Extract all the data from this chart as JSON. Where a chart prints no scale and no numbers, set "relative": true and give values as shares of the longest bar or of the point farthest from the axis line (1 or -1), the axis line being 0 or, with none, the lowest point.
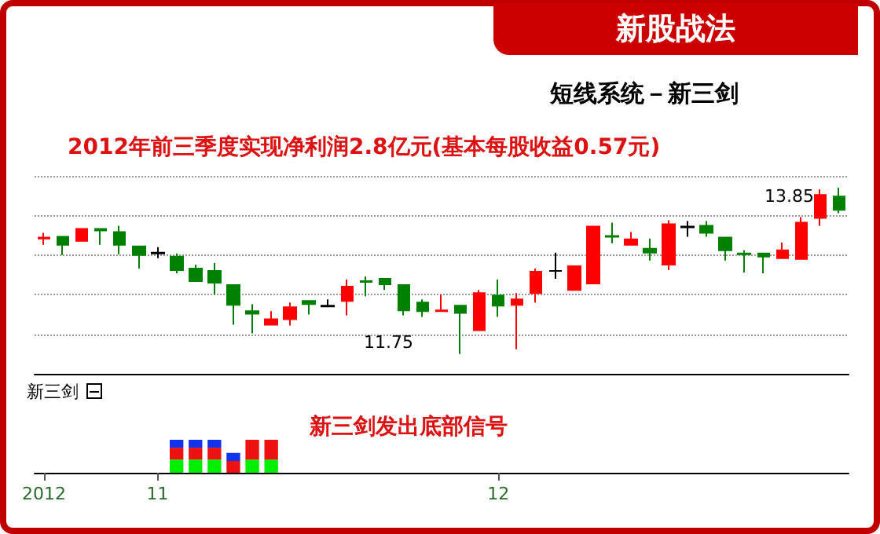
{
  "chart_data": [
    {
      "type": "candlestick",
      "title": "新股战法",
      "subtitle": "短线系统－新三剑",
      "annotations": [
        "2012年前三季度实现净利润2.8亿元(基本每股收益0.57元)",
        "13.85",
        "11.75"
      ],
      "categories": [
        "2012",
        null,
        null,
        null,
        null,
        null,
        "11",
        null,
        null,
        null,
        null,
        null,
        null,
        null,
        null,
        null,
        null,
        null,
        null,
        null,
        null,
        null,
        null,
        null,
        "12",
        null,
        null,
        null,
        null,
        null,
        null,
        null,
        null,
        null,
        null,
        null,
        null,
        null,
        null,
        null,
        null,
        null,
        null
      ],
      "ohlc": [
        [
          13.21,
          13.28,
          13.13,
          13.22
        ],
        [
          13.23,
          13.24,
          13.0,
          13.13
        ],
        [
          13.18,
          13.33,
          13.18,
          13.33
        ],
        [
          13.33,
          13.34,
          13.13,
          13.31
        ],
        [
          13.29,
          13.37,
          13.01,
          13.13
        ],
        [
          13.11,
          13.11,
          12.83,
          13.0
        ],
        [
          13.03,
          13.1,
          12.96,
          13.02
        ],
        [
          12.98,
          13.02,
          12.77,
          12.81
        ],
        [
          12.83,
          12.88,
          12.66,
          12.67
        ],
        [
          12.8,
          12.9,
          12.5,
          12.65
        ],
        [
          12.62,
          12.62,
          12.12,
          12.37
        ],
        [
          12.29,
          12.38,
          12.01,
          12.26
        ],
        [
          12.12,
          12.29,
          12.12,
          12.19
        ],
        [
          12.19,
          12.4,
          12.11,
          12.34
        ],
        [
          12.42,
          12.42,
          12.25,
          12.38
        ],
        [
          12.36,
          12.44,
          12.34,
          12.35
        ],
        [
          12.42,
          12.69,
          12.24,
          12.6
        ],
        [
          12.67,
          12.73,
          12.48,
          12.66
        ],
        [
          12.7,
          12.71,
          12.56,
          12.63
        ],
        [
          12.62,
          12.63,
          12.24,
          12.3
        ],
        [
          12.4,
          12.44,
          12.22,
          12.29
        ],
        [
          12.29,
          12.5,
          12.29,
          12.3
        ],
        [
          12.36,
          12.36,
          11.75,
          12.27
        ],
        [
          12.05,
          12.56,
          12.05,
          12.52
        ],
        [
          12.49,
          12.69,
          12.22,
          12.36
        ],
        [
          12.37,
          12.52,
          11.81,
          12.44
        ],
        [
          12.52,
          12.83,
          12.4,
          12.79
        ],
        [
          12.8,
          13.03,
          12.7,
          12.8
        ],
        [
          12.56,
          12.87,
          12.56,
          12.86
        ],
        [
          12.64,
          13.36,
          12.64,
          13.36
        ],
        [
          13.24,
          13.41,
          13.15,
          13.23
        ],
        [
          13.13,
          13.29,
          13.13,
          13.2
        ],
        [
          13.08,
          13.21,
          12.93,
          13.03
        ],
        [
          12.88,
          13.44,
          12.81,
          13.39
        ],
        [
          13.36,
          13.43,
          13.23,
          13.35
        ],
        [
          13.37,
          13.43,
          13.23,
          13.28
        ],
        [
          13.22,
          13.22,
          12.93,
          13.06
        ],
        [
          13.02,
          13.06,
          12.78,
          13.01
        ],
        [
          13.02,
          13.02,
          12.77,
          12.98
        ],
        [
          12.96,
          13.16,
          12.96,
          13.06
        ],
        [
          12.95,
          13.48,
          12.95,
          13.41
        ],
        [
          13.47,
          13.83,
          13.37,
          13.76
        ],
        [
          13.74,
          13.85,
          13.53,
          13.57
        ]
      ],
      "colors": [
        "#ff0000",
        "#008000",
        "#ff0000",
        "#008000",
        "#008000",
        "#008000",
        "#000000",
        "#008000",
        "#008000",
        "#008000",
        "#008000",
        "#008000",
        "#ff0000",
        "#ff0000",
        "#008000",
        "#000000",
        "#ff0000",
        "#008000",
        "#008000",
        "#008000",
        "#008000",
        "#ff0000",
        "#008000",
        "#ff0000",
        "#008000",
        "#ff0000",
        "#ff0000",
        "#000000",
        "#ff0000",
        "#ff0000",
        "#008000",
        "#ff0000",
        "#008000",
        "#ff0000",
        "#000000",
        "#008000",
        "#008000",
        "#008000",
        "#008000",
        "#ff0000",
        "#ff0000",
        "#ff0000",
        "#008000"
      ],
      "grid": "y",
      "tick_labels": false
    },
    {
      "type": "bar",
      "title": "新三剑",
      "annotations": [
        "新三剑发出底部信号"
      ],
      "relative": true,
      "stacked": true,
      "categories": [
        "2012",
        null,
        null,
        null,
        null,
        null,
        "11",
        null,
        null,
        null,
        null,
        null,
        null,
        null,
        null,
        null,
        null,
        null,
        null,
        null,
        null,
        null,
        null,
        null,
        "12",
        null,
        null,
        null,
        null,
        null,
        null,
        null,
        null,
        null,
        null,
        null,
        null,
        null,
        null,
        null,
        null,
        null,
        null
      ],
      "series": [
        {
          "color": "#00ee00",
          "values": [
            null,
            null,
            null,
            null,
            null,
            null,
            null,
            0.4,
            0.4,
            0.4,
            null,
            0.4,
            0.4,
            null,
            null,
            null,
            null,
            null,
            null,
            null,
            null,
            null,
            null,
            null,
            null,
            null,
            null,
            null,
            null,
            null,
            null,
            null,
            null,
            null,
            null,
            null,
            null,
            null,
            null,
            null,
            null,
            null,
            null
          ]
        },
        {
          "color": "#ee1111",
          "values": [
            null,
            null,
            null,
            null,
            null,
            null,
            null,
            0.36,
            0.36,
            0.36,
            0.36,
            0.6,
            0.6,
            null,
            null,
            null,
            null,
            null,
            null,
            null,
            null,
            null,
            null,
            null,
            null,
            null,
            null,
            null,
            null,
            null,
            null,
            null,
            null,
            null,
            null,
            null,
            null,
            null,
            null,
            null,
            null,
            null,
            null
          ],
          "name": null
        },
        {
          "color": "#1133ee",
          "values": [
            null,
            null,
            null,
            null,
            null,
            null,
            null,
            0.24,
            0.24,
            0.24,
            0.24,
            null,
            null,
            null,
            null,
            null,
            null,
            null,
            null,
            null,
            null,
            null,
            null,
            null,
            null,
            null,
            null,
            null,
            null,
            null,
            null,
            null,
            null,
            null,
            null,
            null,
            null,
            null,
            null,
            null,
            null,
            null,
            null
          ]
        }
      ]
    }
  ]
}
